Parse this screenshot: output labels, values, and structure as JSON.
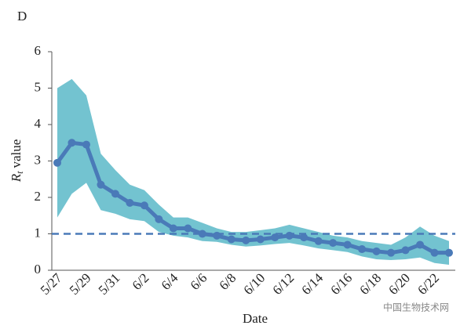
{
  "chart_data": {
    "type": "line",
    "panel_label": "D",
    "ylabel": "R",
    "ylabel_sub": "t",
    "ylabel_rest": "value",
    "xlabel": "Date",
    "categories": [
      "5/27",
      null,
      "5/29",
      null,
      "5/31",
      null,
      "6/2",
      null,
      "6/4",
      null,
      "6/6",
      null,
      "6/8",
      null,
      "6/10",
      null,
      "6/12",
      null,
      "6/14",
      null,
      "6/16",
      null,
      "6/18",
      null,
      "6/20",
      null,
      "6/22",
      null
    ],
    "series": [
      {
        "name": "Rt",
        "color": "#4a7ab8",
        "values": [
          2.95,
          3.5,
          3.45,
          2.35,
          2.1,
          1.85,
          1.78,
          1.4,
          1.15,
          1.15,
          1.0,
          0.95,
          0.85,
          0.82,
          0.85,
          0.9,
          0.95,
          0.9,
          0.8,
          0.75,
          0.7,
          0.58,
          0.52,
          0.48,
          0.55,
          0.7,
          0.48,
          0.48
        ],
        "upper": [
          5.0,
          5.25,
          4.8,
          3.2,
          2.75,
          2.35,
          2.2,
          1.8,
          1.45,
          1.45,
          1.3,
          1.15,
          1.05,
          1.05,
          1.1,
          1.15,
          1.25,
          1.15,
          1.05,
          0.95,
          0.9,
          0.8,
          0.75,
          0.7,
          0.9,
          1.2,
          0.95,
          0.8
        ],
        "lower": [
          1.45,
          2.1,
          2.4,
          1.65,
          1.55,
          1.4,
          1.35,
          1.05,
          0.95,
          0.9,
          0.8,
          0.78,
          0.7,
          0.65,
          0.68,
          0.72,
          0.75,
          0.68,
          0.6,
          0.55,
          0.5,
          0.38,
          0.3,
          0.28,
          0.3,
          0.35,
          0.2,
          0.15
        ],
        "band_color": "#5bb8c8"
      }
    ],
    "reference_line": 1,
    "reference_color": "#4a7ab8",
    "ylim": [
      0,
      6
    ],
    "yticks": [
      0,
      1,
      2,
      3,
      4,
      5,
      6
    ],
    "watermark": "中国生物技术网"
  }
}
